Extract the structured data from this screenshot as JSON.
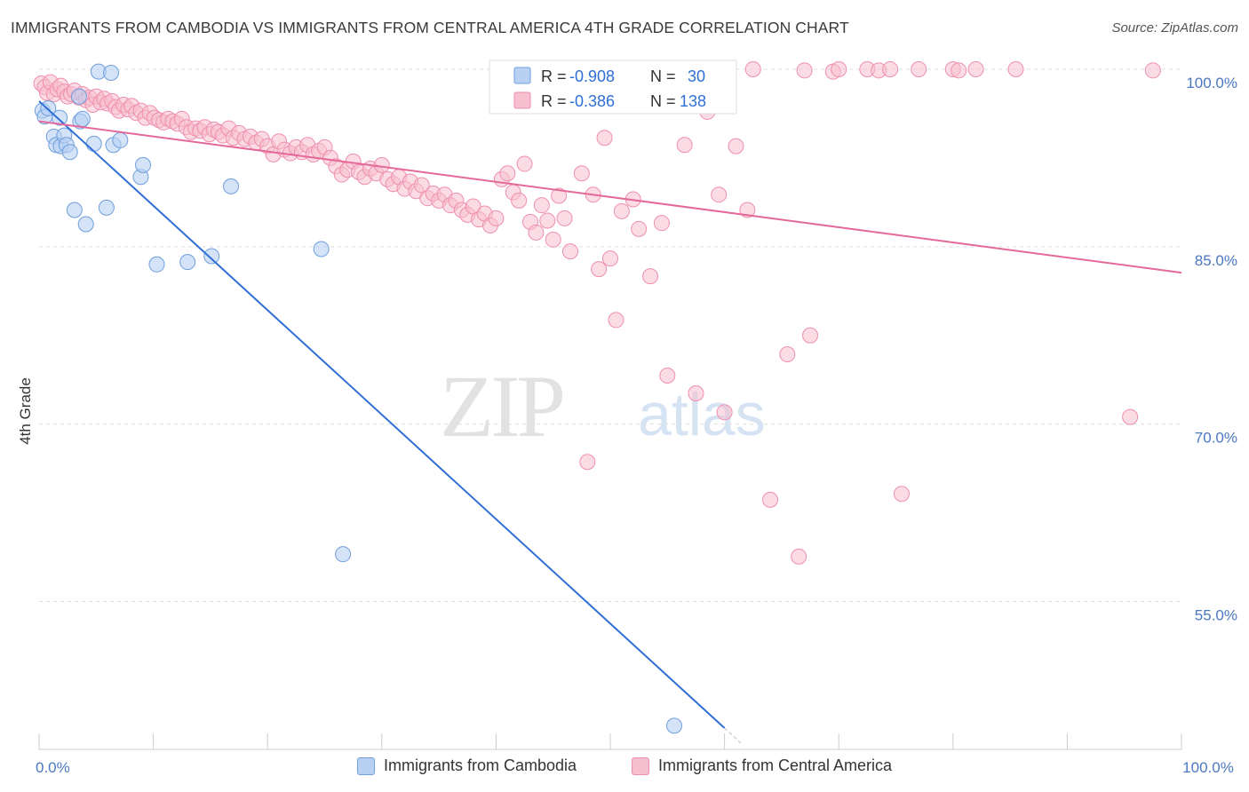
{
  "title": "IMMIGRANTS FROM CAMBODIA VS IMMIGRANTS FROM CENTRAL AMERICA 4TH GRADE CORRELATION CHART",
  "source": "Source: ZipAtlas.com",
  "watermark": {
    "zip": "ZIP",
    "atlas": "atlas"
  },
  "colors": {
    "cambodia_fill": "#b8d1f3",
    "cambodia_stroke": "#6f9fdc",
    "cambodia_line": "#2f6fd6",
    "central_fill": "#f7bfd0",
    "central_stroke": "#ee8fae",
    "central_line": "#e4699a",
    "tick_label": "#4a78c2",
    "grid": "#dddddd"
  },
  "legend": {
    "rows": [
      {
        "r_label": "R = ",
        "r_value": "-0.908",
        "n_label": "N = ",
        "n_value": "30"
      },
      {
        "r_label": "R = ",
        "r_value": "-0.386",
        "n_label": "N = ",
        "n_value": "138"
      }
    ]
  },
  "chart_data": {
    "type": "scatter",
    "title": "IMMIGRANTS FROM CAMBODIA VS IMMIGRANTS FROM CENTRAL AMERICA 4TH GRADE CORRELATION CHART",
    "xlabel": "",
    "ylabel": "4th Grade",
    "xlim": [
      0,
      100
    ],
    "ylim": [
      42.5,
      101.5
    ],
    "x_tick_labels": [
      {
        "value": 0,
        "label": "0.0%"
      },
      {
        "value": 100,
        "label": "100.0%"
      }
    ],
    "x_minor_ticks": [
      0,
      10,
      20,
      30,
      40,
      50,
      60,
      70,
      80,
      90,
      100
    ],
    "y_ticks": [
      {
        "value": 100,
        "label": "100.0%"
      },
      {
        "value": 85,
        "label": "85.0%"
      },
      {
        "value": 70,
        "label": "70.0%"
      },
      {
        "value": 55,
        "label": "55.0%"
      }
    ],
    "grid": true,
    "legend_position": "top-center",
    "series": [
      {
        "name": "Immigrants from Cambodia",
        "color": "#b8d1f3",
        "r": -0.908,
        "n": 30,
        "trend": {
          "x": [
            0,
            60
          ],
          "y": [
            97.3,
            44.3
          ]
        },
        "points": [
          [
            0.3,
            96.5
          ],
          [
            0.5,
            96.0
          ],
          [
            0.8,
            96.7
          ],
          [
            1.3,
            94.3
          ],
          [
            1.5,
            93.6
          ],
          [
            1.8,
            95.9
          ],
          [
            1.9,
            93.5
          ],
          [
            2.2,
            94.4
          ],
          [
            2.4,
            93.6
          ],
          [
            2.7,
            93.0
          ],
          [
            3.1,
            88.1
          ],
          [
            3.5,
            97.7
          ],
          [
            3.6,
            95.6
          ],
          [
            3.8,
            95.8
          ],
          [
            4.1,
            86.9
          ],
          [
            4.8,
            93.7
          ],
          [
            5.2,
            99.8
          ],
          [
            5.9,
            88.3
          ],
          [
            6.3,
            99.7
          ],
          [
            6.5,
            93.6
          ],
          [
            7.1,
            94.0
          ],
          [
            8.9,
            90.9
          ],
          [
            9.1,
            91.9
          ],
          [
            10.3,
            83.5
          ],
          [
            13.0,
            83.7
          ],
          [
            15.1,
            84.2
          ],
          [
            16.8,
            90.1
          ],
          [
            24.7,
            84.8
          ],
          [
            26.6,
            59.0
          ],
          [
            55.6,
            44.5
          ]
        ]
      },
      {
        "name": "Immigrants from Central America",
        "color": "#f7bfd0",
        "r": -0.386,
        "n": 138,
        "trend": {
          "x": [
            0,
            100
          ],
          "y": [
            95.6,
            82.8
          ]
        },
        "points": [
          [
            0.2,
            98.8
          ],
          [
            0.5,
            98.5
          ],
          [
            0.7,
            98.0
          ],
          [
            1.0,
            98.9
          ],
          [
            1.3,
            97.9
          ],
          [
            1.6,
            98.3
          ],
          [
            1.9,
            98.6
          ],
          [
            2.2,
            98.1
          ],
          [
            2.5,
            97.7
          ],
          [
            2.8,
            97.9
          ],
          [
            3.1,
            98.2
          ],
          [
            3.5,
            97.6
          ],
          [
            3.8,
            97.9
          ],
          [
            4.1,
            97.4
          ],
          [
            4.4,
            97.6
          ],
          [
            4.7,
            97.0
          ],
          [
            5.0,
            97.7
          ],
          [
            5.4,
            97.2
          ],
          [
            5.7,
            97.5
          ],
          [
            6.0,
            97.1
          ],
          [
            6.4,
            97.3
          ],
          [
            6.7,
            96.8
          ],
          [
            7.0,
            96.5
          ],
          [
            7.4,
            97.0
          ],
          [
            7.8,
            96.6
          ],
          [
            8.1,
            96.9
          ],
          [
            8.5,
            96.3
          ],
          [
            8.9,
            96.5
          ],
          [
            9.3,
            95.9
          ],
          [
            9.7,
            96.3
          ],
          [
            10.1,
            95.9
          ],
          [
            10.5,
            95.7
          ],
          [
            10.9,
            95.5
          ],
          [
            11.3,
            95.8
          ],
          [
            11.7,
            95.6
          ],
          [
            12.1,
            95.4
          ],
          [
            12.5,
            95.8
          ],
          [
            12.9,
            95.1
          ],
          [
            13.3,
            94.7
          ],
          [
            13.7,
            95.0
          ],
          [
            14.1,
            94.8
          ],
          [
            14.5,
            95.1
          ],
          [
            14.9,
            94.5
          ],
          [
            15.3,
            94.9
          ],
          [
            15.7,
            94.7
          ],
          [
            16.1,
            94.4
          ],
          [
            16.6,
            95.0
          ],
          [
            17.0,
            94.2
          ],
          [
            17.5,
            94.6
          ],
          [
            18.0,
            94.1
          ],
          [
            18.5,
            94.3
          ],
          [
            19.0,
            93.8
          ],
          [
            19.5,
            94.1
          ],
          [
            20.0,
            93.5
          ],
          [
            20.5,
            92.8
          ],
          [
            21.0,
            93.9
          ],
          [
            21.5,
            93.2
          ],
          [
            22.0,
            92.9
          ],
          [
            22.5,
            93.4
          ],
          [
            23.0,
            93.0
          ],
          [
            23.5,
            93.6
          ],
          [
            24.0,
            92.8
          ],
          [
            24.5,
            93.1
          ],
          [
            25.0,
            93.4
          ],
          [
            25.5,
            92.5
          ],
          [
            26.0,
            91.8
          ],
          [
            26.5,
            91.1
          ],
          [
            27.0,
            91.5
          ],
          [
            27.5,
            92.2
          ],
          [
            28.0,
            91.3
          ],
          [
            28.5,
            90.9
          ],
          [
            29.0,
            91.6
          ],
          [
            29.5,
            91.2
          ],
          [
            30.0,
            91.9
          ],
          [
            30.5,
            90.7
          ],
          [
            31.0,
            90.3
          ],
          [
            31.5,
            90.9
          ],
          [
            32.0,
            89.9
          ],
          [
            32.5,
            90.5
          ],
          [
            33.0,
            89.7
          ],
          [
            33.5,
            90.2
          ],
          [
            34.0,
            89.1
          ],
          [
            34.5,
            89.5
          ],
          [
            35.0,
            88.9
          ],
          [
            35.5,
            89.4
          ],
          [
            36.0,
            88.5
          ],
          [
            36.5,
            88.9
          ],
          [
            37.0,
            88.1
          ],
          [
            37.5,
            87.7
          ],
          [
            38.0,
            88.4
          ],
          [
            38.5,
            87.3
          ],
          [
            39.0,
            87.8
          ],
          [
            39.5,
            86.8
          ],
          [
            40.0,
            87.4
          ],
          [
            40.5,
            90.7
          ],
          [
            41.0,
            91.2
          ],
          [
            41.5,
            89.6
          ],
          [
            42.0,
            88.9
          ],
          [
            42.5,
            92.0
          ],
          [
            43.0,
            87.1
          ],
          [
            43.5,
            86.2
          ],
          [
            44.0,
            88.5
          ],
          [
            44.5,
            87.2
          ],
          [
            45.0,
            85.6
          ],
          [
            45.5,
            89.3
          ],
          [
            46.0,
            87.4
          ],
          [
            46.5,
            84.6
          ],
          [
            47.5,
            91.2
          ],
          [
            48.5,
            89.4
          ],
          [
            49.0,
            83.1
          ],
          [
            49.5,
            94.2
          ],
          [
            50.0,
            84.0
          ],
          [
            50.5,
            78.8
          ],
          [
            51.0,
            88.0
          ],
          [
            52.0,
            89.0
          ],
          [
            52.5,
            86.5
          ],
          [
            53.5,
            82.5
          ],
          [
            54.5,
            87.0
          ],
          [
            55.0,
            74.1
          ],
          [
            56.5,
            93.6
          ],
          [
            57.5,
            72.6
          ],
          [
            59.5,
            89.4
          ],
          [
            60.0,
            71.0
          ],
          [
            61.0,
            93.5
          ],
          [
            62.0,
            88.1
          ],
          [
            62.5,
            100.0
          ],
          [
            64.0,
            63.6
          ],
          [
            65.5,
            75.9
          ],
          [
            66.5,
            58.8
          ],
          [
            67.0,
            99.9
          ],
          [
            67.5,
            77.5
          ],
          [
            69.5,
            99.8
          ],
          [
            70.0,
            100.0
          ],
          [
            72.5,
            100.0
          ],
          [
            73.5,
            99.9
          ],
          [
            74.5,
            100.0
          ],
          [
            75.5,
            64.1
          ],
          [
            77.0,
            100.0
          ],
          [
            80.0,
            100.0
          ],
          [
            80.5,
            99.9
          ],
          [
            82.0,
            100.0
          ],
          [
            85.5,
            100.0
          ],
          [
            95.5,
            70.6
          ],
          [
            97.5,
            99.9
          ],
          [
            48.0,
            66.8
          ],
          [
            58.5,
            96.4
          ]
        ]
      }
    ]
  },
  "bottom_legend": [
    {
      "label": "Immigrants from Cambodia"
    },
    {
      "label": "Immigrants from Central America"
    }
  ]
}
